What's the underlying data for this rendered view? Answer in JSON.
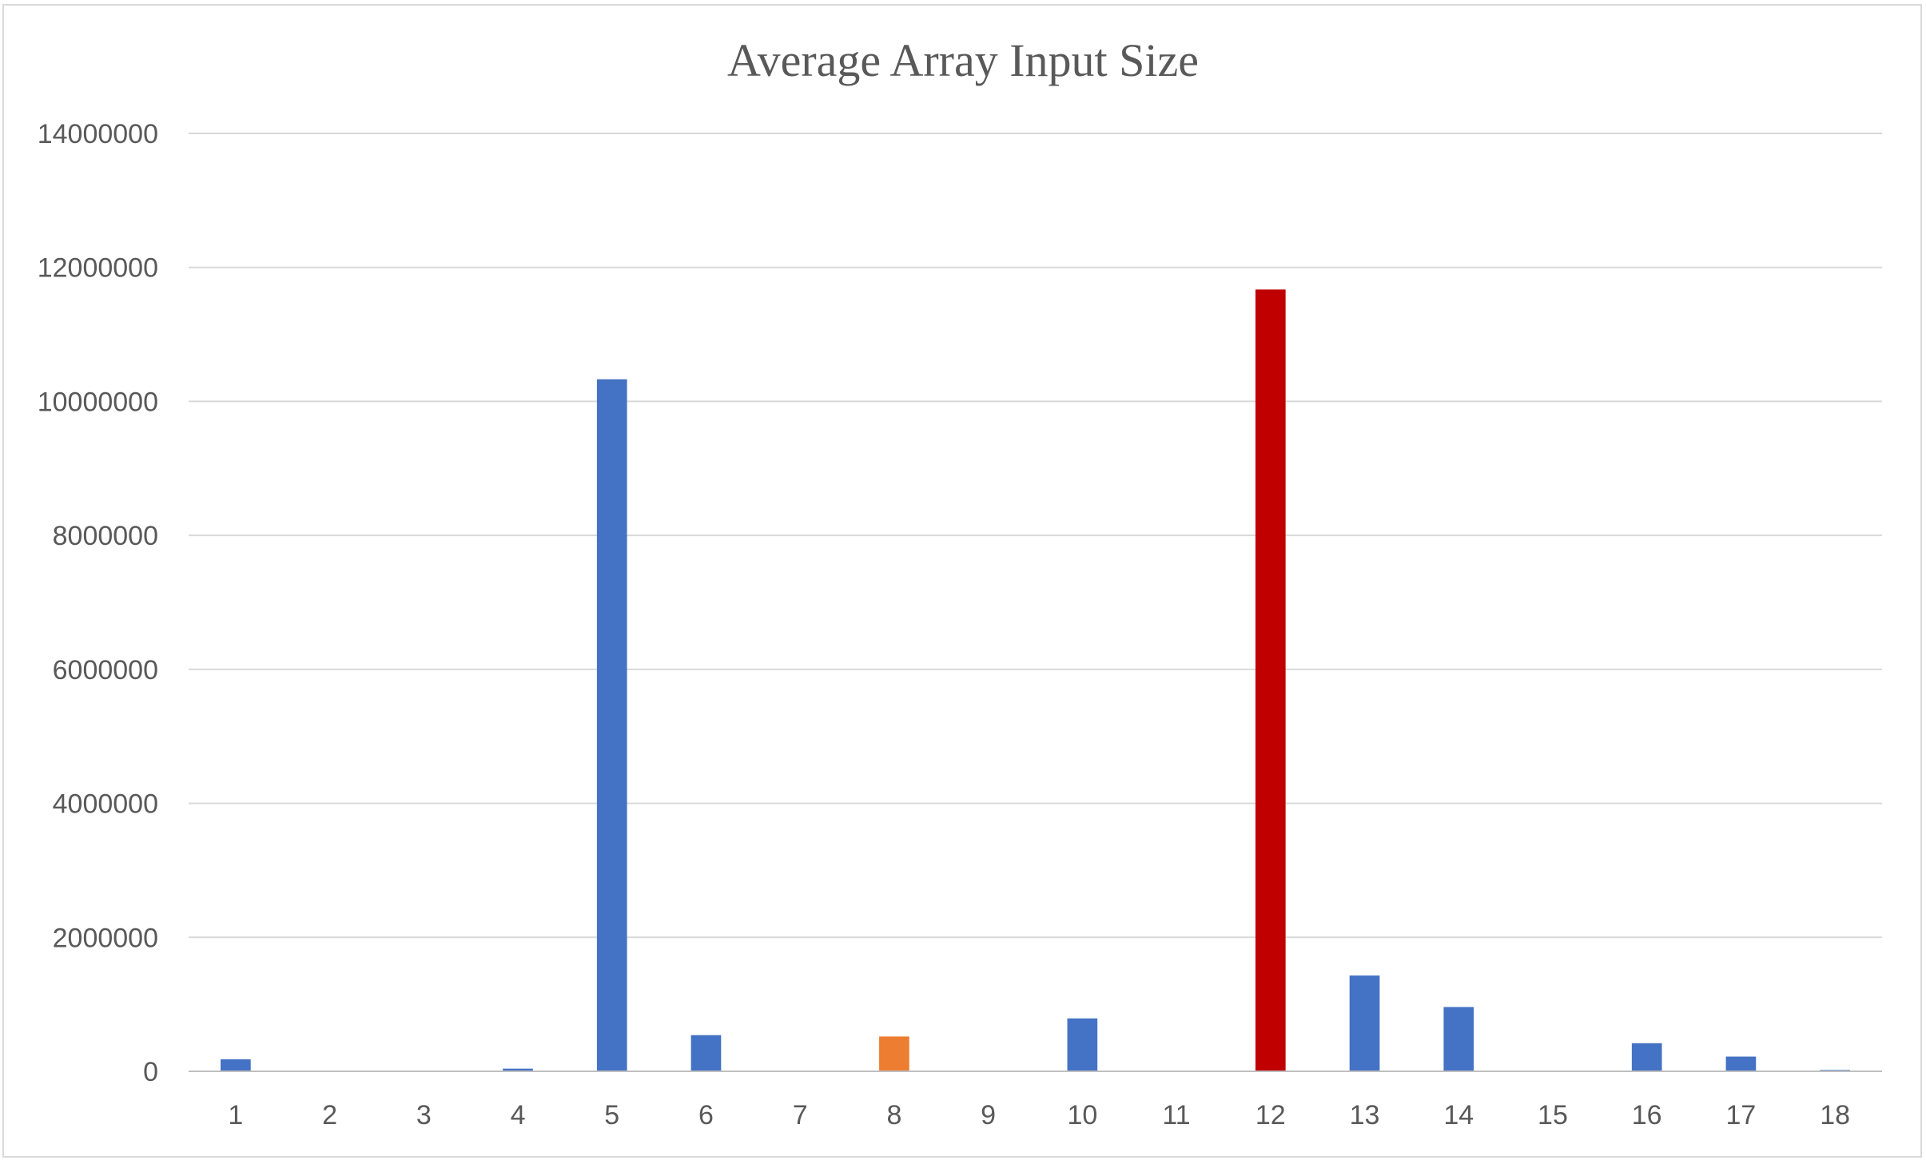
{
  "chart_data": {
    "type": "bar",
    "title": "Average Array Input Size",
    "xlabel": "",
    "ylabel": "",
    "ylim": [
      0,
      14000000
    ],
    "yticks": [
      0,
      2000000,
      4000000,
      6000000,
      8000000,
      10000000,
      12000000,
      14000000
    ],
    "ytick_labels": [
      "0",
      "2000000",
      "4000000",
      "6000000",
      "8000000",
      "10000000",
      "12000000",
      "14000000"
    ],
    "categories": [
      "1",
      "2",
      "3",
      "4",
      "5",
      "6",
      "7",
      "8",
      "9",
      "10",
      "11",
      "12",
      "13",
      "14",
      "15",
      "16",
      "17",
      "18"
    ],
    "values": [
      180000,
      0,
      0,
      40000,
      10330000,
      540000,
      0,
      520000,
      0,
      790000,
      0,
      11670000,
      1430000,
      960000,
      0,
      420000,
      220000,
      20000
    ],
    "bar_colors": [
      "#4472c4",
      "#4472c4",
      "#4472c4",
      "#4472c4",
      "#4472c4",
      "#4472c4",
      "#4472c4",
      "#ed7d31",
      "#4472c4",
      "#4472c4",
      "#4472c4",
      "#c00000",
      "#4472c4",
      "#4472c4",
      "#4472c4",
      "#4472c4",
      "#4472c4",
      "#4472c4"
    ],
    "grid": true,
    "legend": "none"
  }
}
